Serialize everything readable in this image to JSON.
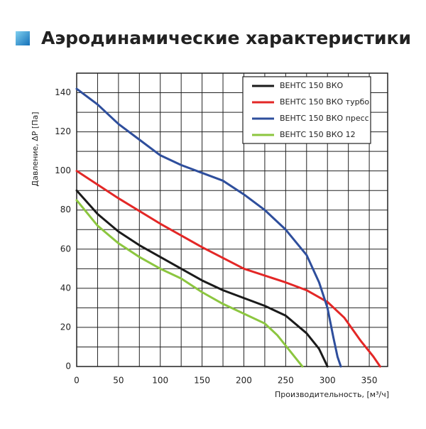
{
  "chart_data": {
    "type": "line",
    "title": "Аэродинамические характеристики",
    "x_label": "Производительность, [м³/ч]",
    "y_label": "Давление, ΔР [Па]",
    "xlim": [
      0,
      372
    ],
    "ylim": [
      0,
      150
    ],
    "xticks": [
      0,
      50,
      100,
      150,
      200,
      250,
      300,
      350
    ],
    "yticks": [
      0,
      20,
      40,
      60,
      80,
      100,
      120,
      140
    ],
    "xgrid": [
      25,
      75,
      125,
      175,
      225,
      275,
      325
    ],
    "ygrid": [
      10,
      30,
      50,
      70,
      90,
      110,
      130,
      150
    ],
    "grid": true,
    "legend": "upper right",
    "series": [
      {
        "name": "ВЕНТС 150 ВКО",
        "color": "#1a1a1a",
        "x": [
          0,
          25,
          50,
          75,
          100,
          125,
          150,
          175,
          200,
          225,
          250,
          275,
          290,
          300
        ],
        "values": [
          90,
          78,
          69,
          62,
          56,
          50,
          44,
          39,
          35,
          31,
          26,
          17,
          9,
          0
        ]
      },
      {
        "name": "ВЕНТС 150 ВКО турбо",
        "color": "#e32726",
        "x": [
          0,
          50,
          100,
          150,
          200,
          250,
          275,
          300,
          320,
          340,
          355,
          363
        ],
        "values": [
          100,
          86,
          73,
          61,
          50,
          43,
          39,
          33,
          25,
          13,
          5,
          0
        ]
      },
      {
        "name": "ВЕНТС 150 ВКО пресс",
        "color": "#2e4e9c",
        "x": [
          0,
          25,
          50,
          75,
          100,
          125,
          150,
          175,
          200,
          225,
          250,
          275,
          290,
          300,
          307,
          312,
          316
        ],
        "values": [
          142,
          134,
          124,
          116,
          108,
          103,
          99,
          95,
          88,
          80,
          70,
          57,
          43,
          30,
          15,
          5,
          0
        ]
      },
      {
        "name": "ВЕНТС 150 ВКО 12",
        "color": "#8cc63f",
        "x": [
          0,
          25,
          50,
          75,
          100,
          125,
          150,
          175,
          200,
          225,
          240,
          255,
          270
        ],
        "values": [
          85,
          72,
          63,
          56,
          50,
          45,
          38,
          32,
          27,
          22,
          16,
          8,
          0
        ]
      }
    ]
  }
}
